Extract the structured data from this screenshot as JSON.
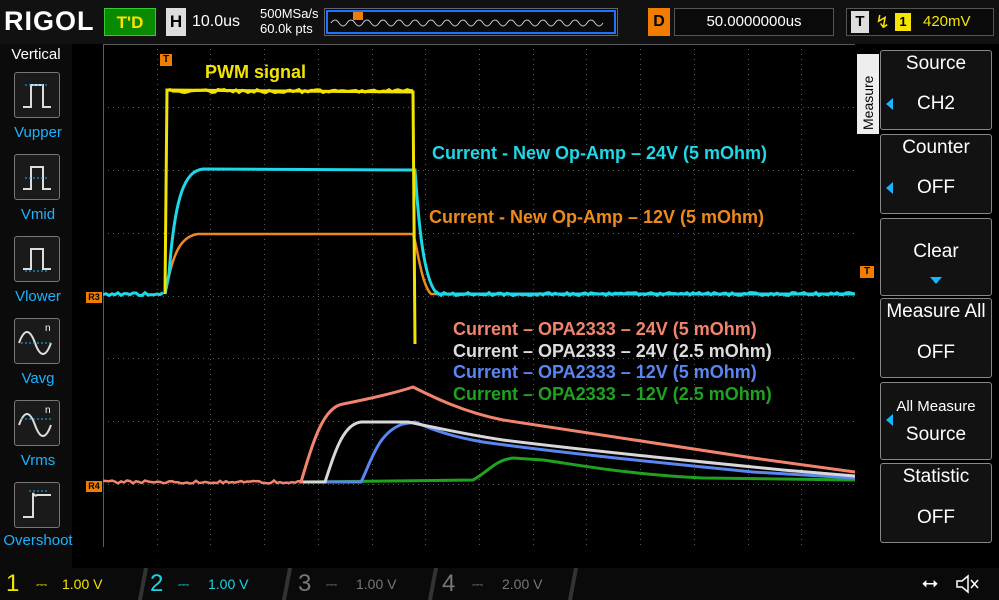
{
  "brand": "RIGOL",
  "run_state": "T'D",
  "timebase": {
    "badge": "H",
    "value": "10.0us"
  },
  "sampling": {
    "rate": "500MSa/s",
    "points": "60.0k pts"
  },
  "delay": {
    "badge": "D",
    "value": "50.0000000us"
  },
  "trigger": {
    "badge": "T",
    "channel": "1",
    "level": "420mV"
  },
  "vertical": {
    "title": "Vertical",
    "measures": [
      {
        "label": "Vupper",
        "icon": "vupper-icon"
      },
      {
        "label": "Vmid",
        "icon": "vmid-icon"
      },
      {
        "label": "Vlower",
        "icon": "vlower-icon"
      },
      {
        "label": "Vavg",
        "icon": "vavg-icon"
      },
      {
        "label": "Vrms",
        "icon": "vrms-icon"
      },
      {
        "label": "Overshoot",
        "icon": "overshoot-icon"
      }
    ]
  },
  "measure_menu": {
    "tab": "Measure",
    "source": {
      "title": "Source",
      "value": "CH2"
    },
    "counter": {
      "title": "Counter",
      "value": "OFF"
    },
    "clear": {
      "title": "Clear"
    },
    "measure_all": {
      "title": "Measure All",
      "value": "OFF"
    },
    "all_measure_source": {
      "title": "All Measure",
      "value": "Source"
    },
    "statistic": {
      "title": "Statistic",
      "value": "OFF"
    }
  },
  "markers": {
    "trigger_top": "T",
    "trigger_right": "T",
    "ref1": "R3",
    "ref2": "R4"
  },
  "annotations": {
    "pwm": "PWM signal",
    "new24": "Current - New Op-Amp – 24V (5 mOhm)",
    "new12": "Current - New Op-Amp – 12V (5 mOhm)",
    "opa24_5": "Current – OPA2333 – 24V (5 mOhm)",
    "opa24_25": "Current – OPA2333 – 24V (2.5 mOhm)",
    "opa12_5": "Current – OPA2333 – 12V (5 mOhm)",
    "opa12_25": "Current – OPA2333 – 12V (2.5 mOhm)"
  },
  "channels": [
    {
      "num": "1",
      "scale": "1.00 V",
      "color": "#f5e600"
    },
    {
      "num": "2",
      "scale": "1.00 V",
      "color": "#19d4e6"
    },
    {
      "num": "3",
      "scale": "1.00 V",
      "color": "#777777"
    },
    {
      "num": "4",
      "scale": "2.00 V",
      "color": "#777777"
    }
  ],
  "colors": {
    "grid": "#5a5a5a",
    "yellow": "#f2e400",
    "cyan": "#1ed7e7",
    "orange": "#ee8a1c",
    "salmon": "#f2846e",
    "white": "#d8d8d8",
    "blue": "#5a86f2",
    "green": "#1fa21f",
    "accent": "#19b4ff"
  }
}
